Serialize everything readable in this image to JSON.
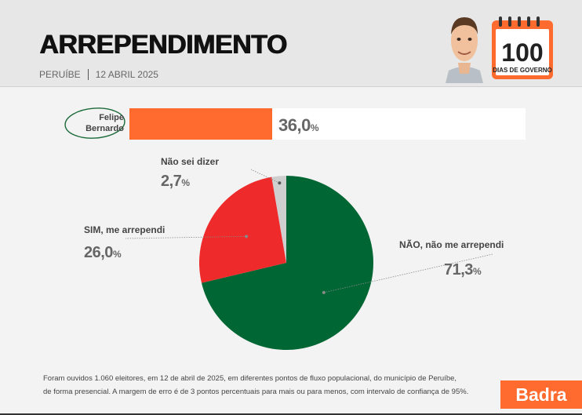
{
  "header": {
    "title": "ARREPENDIMENTO",
    "location": "PERUÍBE",
    "date": "12 ABRIL 2025",
    "calendar_number": "100",
    "calendar_caption": "DIAS DE GOVERNO",
    "calendar_color": "#ff6b2e"
  },
  "chart_data": [
    {
      "type": "bar",
      "categories": [
        "Felipe Bernardo"
      ],
      "values": [
        36.0
      ],
      "ylim": [
        0,
        100
      ],
      "value_label": "36,0",
      "value_suffix": "%",
      "category_lines": [
        "Felipe",
        "Bernardo"
      ],
      "color": "#ff6b2e"
    },
    {
      "type": "pie",
      "slices": [
        {
          "label": "NÃO, não me arrependi",
          "value": 71.3,
          "value_label": "71,3",
          "color": "#006633"
        },
        {
          "label": "SIM, me arrependi",
          "value": 26.0,
          "value_label": "26,0",
          "color": "#ee2a2a"
        },
        {
          "label": "Não sei dizer",
          "value": 2.7,
          "value_label": "2,7",
          "color": "#cfcfcf"
        }
      ],
      "value_suffix": "%"
    }
  ],
  "footnote": {
    "line1": "Foram ouvidos 1.060 eleitores, em 12 de abril de 2025, em diferentes pontos de fluxo populacional, do município de Peruíbe,",
    "line2": "de forma presencial. A margem de erro é de 3 pontos percentuais para mais ou para menos, com intervalo de confiança de 95%."
  },
  "brand": {
    "name": "Badra",
    "color": "#ff6b2e"
  }
}
